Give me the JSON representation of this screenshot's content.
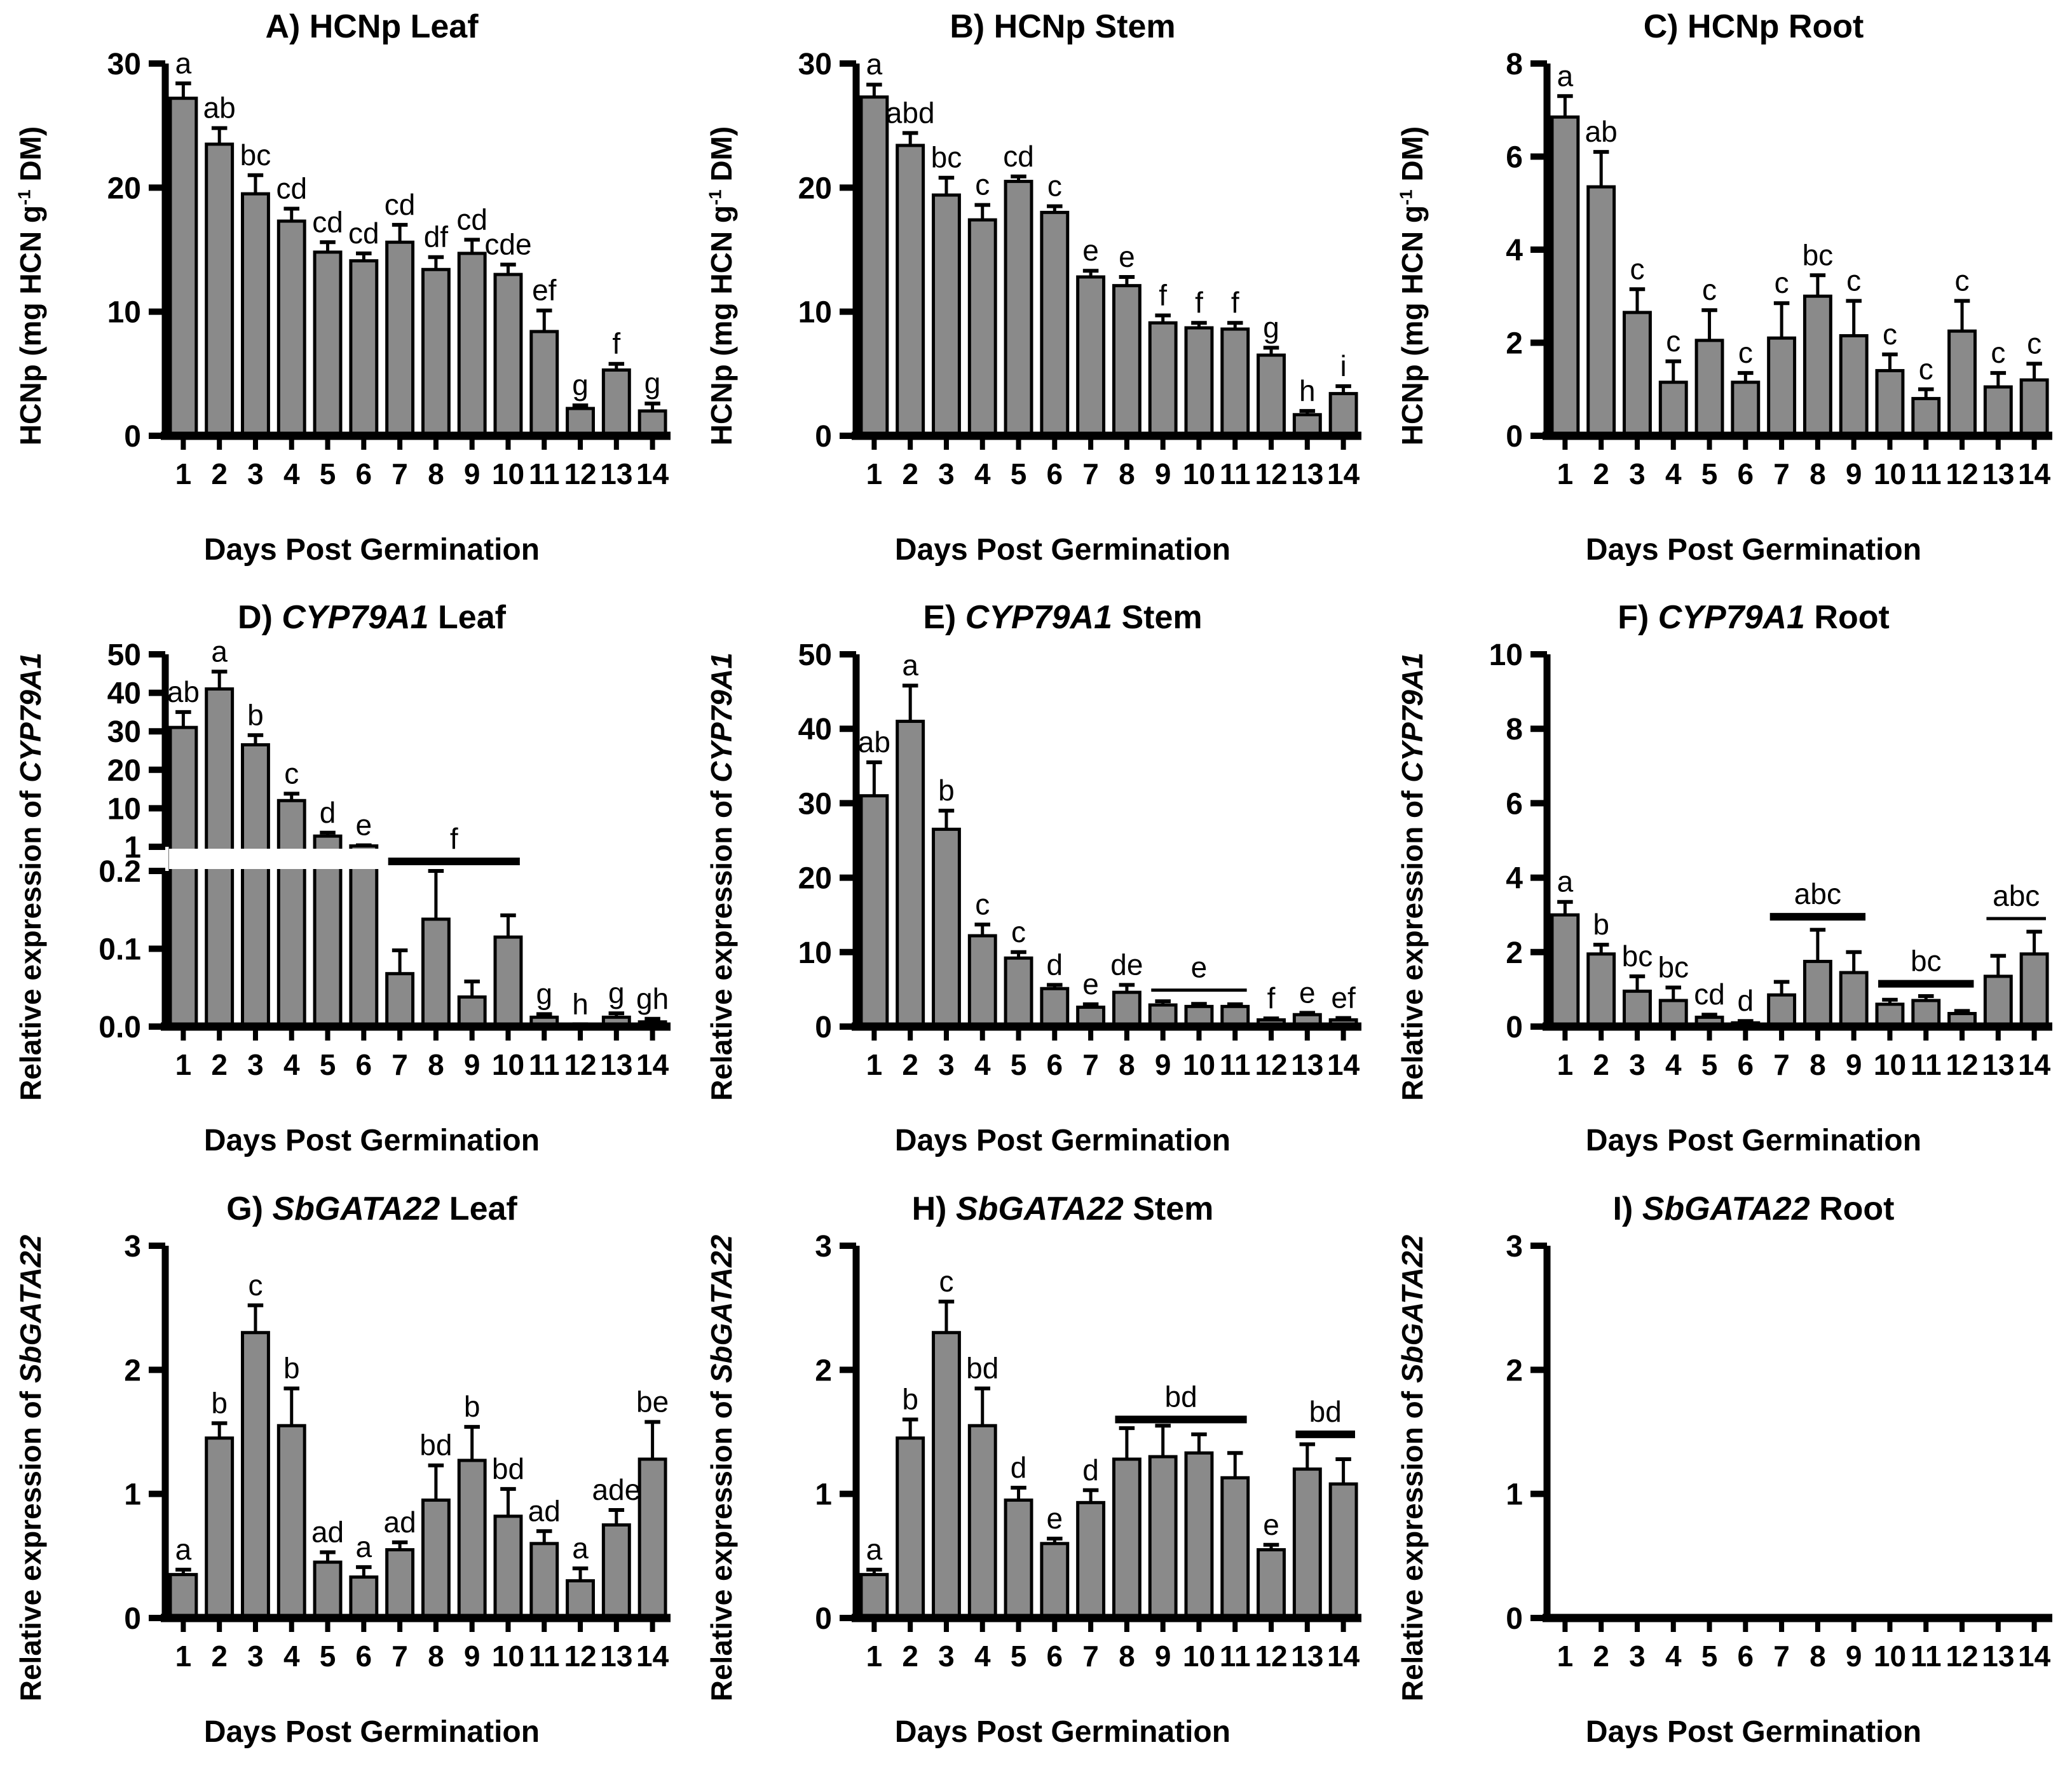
{
  "figure": {
    "xlabel": "Days Post Germination",
    "bar_color": "#8a8a8a",
    "bar_edge": "#000000",
    "text_color": "#000000",
    "background": "#ffffff"
  },
  "chart_data": [
    {
      "id": "A",
      "type": "bar",
      "title": [
        {
          "t": "A) HCNp Leaf"
        }
      ],
      "ylabel": [
        {
          "t": "HCNp  (mg HCN g"
        },
        {
          "t": "-1",
          "sup": true
        },
        {
          "t": " DM)"
        }
      ],
      "xlabel": "Days Post Germination",
      "categories": [
        1,
        2,
        3,
        4,
        5,
        6,
        7,
        8,
        9,
        10,
        11,
        12,
        13,
        14
      ],
      "ylim": [
        0,
        30
      ],
      "yticks": [
        0,
        10,
        20,
        30
      ],
      "values": [
        27.2,
        23.5,
        19.5,
        17.3,
        14.8,
        14.1,
        15.6,
        13.4,
        14.7,
        13.0,
        8.4,
        2.2,
        5.3,
        2.0
      ],
      "errors": [
        1.2,
        1.3,
        1.5,
        1.0,
        0.8,
        0.6,
        1.4,
        1.0,
        1.1,
        0.8,
        1.7,
        0.25,
        0.5,
        0.6
      ],
      "letters": [
        "a",
        "ab",
        "bc",
        "cd",
        "cd",
        "cd",
        "cd",
        "df",
        "cd",
        "cde",
        "ef",
        "g",
        "f",
        "g"
      ],
      "spans": []
    },
    {
      "id": "B",
      "type": "bar",
      "title": [
        {
          "t": "B) HCNp Stem"
        }
      ],
      "ylabel": [
        {
          "t": "HCNp  (mg  HCN g"
        },
        {
          "t": "-1",
          "sup": true
        },
        {
          "t": " DM)"
        }
      ],
      "xlabel": "Days Post Germination",
      "categories": [
        1,
        2,
        3,
        4,
        5,
        6,
        7,
        8,
        9,
        10,
        11,
        12,
        13,
        14
      ],
      "ylim": [
        0,
        30
      ],
      "yticks": [
        0,
        10,
        20,
        30
      ],
      "values": [
        27.3,
        23.4,
        19.4,
        17.4,
        20.5,
        18.0,
        12.8,
        12.1,
        9.1,
        8.7,
        8.6,
        6.5,
        1.7,
        3.4
      ],
      "errors": [
        1.0,
        1.0,
        1.4,
        1.2,
        0.4,
        0.5,
        0.5,
        0.7,
        0.6,
        0.4,
        0.5,
        0.6,
        0.3,
        0.6
      ],
      "letters": [
        "a",
        "abd",
        "bc",
        "c",
        "cd",
        "c",
        "e",
        "e",
        "f",
        "f",
        "f",
        "g",
        "h",
        "i"
      ],
      "spans": []
    },
    {
      "id": "C",
      "type": "bar",
      "title": [
        {
          "t": "C) HCNp Root"
        }
      ],
      "ylabel": [
        {
          "t": "HCNp  (mg HCN g"
        },
        {
          "t": "-1",
          "sup": true
        },
        {
          "t": " DM)"
        }
      ],
      "xlabel": "Days Post Germination",
      "categories": [
        1,
        2,
        3,
        4,
        5,
        6,
        7,
        8,
        9,
        10,
        11,
        12,
        13,
        14
      ],
      "ylim": [
        0,
        8
      ],
      "yticks": [
        0,
        2,
        4,
        6,
        8
      ],
      "values": [
        6.85,
        5.35,
        2.65,
        1.15,
        2.05,
        1.15,
        2.1,
        3.0,
        2.15,
        1.4,
        0.8,
        2.25,
        1.05,
        1.2
      ],
      "errors": [
        0.45,
        0.75,
        0.5,
        0.45,
        0.65,
        0.2,
        0.75,
        0.45,
        0.75,
        0.35,
        0.2,
        0.65,
        0.3,
        0.35
      ],
      "letters": [
        "a",
        "ab",
        "c",
        "c",
        "c",
        "c",
        "c",
        "bc",
        "c",
        "c",
        "c",
        "c",
        "c",
        "c"
      ],
      "spans": []
    },
    {
      "id": "D",
      "type": "bar-broken",
      "title": [
        {
          "t": "D) "
        },
        {
          "t": "CYP79A1",
          "i": true
        },
        {
          "t": " Leaf"
        }
      ],
      "ylabel": [
        {
          "t": "Relative expression of "
        },
        {
          "t": "CYP79A1",
          "i": true
        }
      ],
      "xlabel": "Days Post Germination",
      "categories": [
        1,
        2,
        3,
        4,
        5,
        6,
        7,
        8,
        9,
        10,
        11,
        12,
        13,
        14
      ],
      "broken": {
        "lower_lim": 0.2,
        "lower_ticks": [
          0,
          0.1,
          0.2
        ],
        "lower_tick_labels": [
          "0.0",
          "0.1",
          "0.2"
        ],
        "upper_ticks": [
          1,
          10,
          20,
          30,
          40,
          50
        ]
      },
      "values": [
        31,
        41,
        26.5,
        12,
        3.5,
        1.2,
        0.068,
        0.138,
        0.038,
        0.115,
        0.012,
        0.002,
        0.012,
        0.006
      ],
      "errors": [
        4,
        4.5,
        2.5,
        1.8,
        0.8,
        0.15,
        0.03,
        0.062,
        0.02,
        0.028,
        0.004,
        0.001,
        0.005,
        0.004
      ],
      "letters": [
        "ab",
        "a",
        "b",
        "c",
        "d",
        "e",
        "",
        "",
        "",
        "",
        "g",
        "h",
        "g",
        "gh"
      ],
      "spans": [
        {
          "label": "f",
          "from": 7,
          "to": 10,
          "gap": true,
          "thick": true
        }
      ]
    },
    {
      "id": "E",
      "type": "bar",
      "title": [
        {
          "t": "E) "
        },
        {
          "t": "CYP79A1",
          "i": true
        },
        {
          "t": " Stem"
        }
      ],
      "ylabel": [
        {
          "t": "Relative expression of "
        },
        {
          "t": "CYP79A1",
          "i": true
        }
      ],
      "xlabel": "Days Post Germination",
      "categories": [
        1,
        2,
        3,
        4,
        5,
        6,
        7,
        8,
        9,
        10,
        11,
        12,
        13,
        14
      ],
      "ylim": [
        0,
        50
      ],
      "yticks": [
        0,
        10,
        20,
        30,
        40,
        50
      ],
      "values": [
        31,
        41,
        26.5,
        12.2,
        9.2,
        5.1,
        2.6,
        4.6,
        2.9,
        2.7,
        2.7,
        0.9,
        1.6,
        0.9
      ],
      "errors": [
        4.5,
        4.8,
        2.5,
        1.5,
        0.8,
        0.5,
        0.4,
        1.0,
        0.5,
        0.35,
        0.3,
        0.2,
        0.25,
        0.25
      ],
      "letters": [
        "ab",
        "a",
        "b",
        "c",
        "c",
        "d",
        "e",
        "de",
        "",
        "",
        "",
        "f",
        "e",
        "ef"
      ],
      "spans": [
        {
          "label": "e",
          "from": 9,
          "to": 11,
          "y": 4.9,
          "thick": false
        }
      ]
    },
    {
      "id": "F",
      "type": "bar",
      "title": [
        {
          "t": "F) "
        },
        {
          "t": "CYP79A1",
          "i": true
        },
        {
          "t": " Root"
        }
      ],
      "ylabel": [
        {
          "t": "Relative expression of "
        },
        {
          "t": "CYP79A1",
          "i": true
        }
      ],
      "xlabel": "Days Post Germination",
      "categories": [
        1,
        2,
        3,
        4,
        5,
        6,
        7,
        8,
        9,
        10,
        11,
        12,
        13,
        14
      ],
      "ylim": [
        0,
        10
      ],
      "yticks": [
        0,
        2,
        4,
        6,
        8,
        10
      ],
      "values": [
        3.0,
        1.95,
        0.95,
        0.7,
        0.25,
        0.1,
        0.85,
        1.75,
        1.45,
        0.6,
        0.7,
        0.35,
        1.35,
        1.95
      ],
      "errors": [
        0.35,
        0.25,
        0.4,
        0.35,
        0.07,
        0.05,
        0.35,
        0.85,
        0.55,
        0.12,
        0.12,
        0.07,
        0.55,
        0.6
      ],
      "letters": [
        "a",
        "b",
        "bc",
        "bc",
        "cd",
        "d",
        "",
        "",
        "",
        "",
        "",
        "",
        "",
        ""
      ],
      "spans": [
        {
          "label": "abc",
          "from": 7,
          "to": 9,
          "y": 2.95,
          "thick": true
        },
        {
          "label": "bc",
          "from": 10,
          "to": 12,
          "y": 1.15,
          "thick": true
        },
        {
          "label": "abc",
          "from": 13,
          "to": 14,
          "y": 2.9,
          "thick": false
        }
      ]
    },
    {
      "id": "G",
      "type": "bar",
      "title": [
        {
          "t": "G) "
        },
        {
          "t": "SbGATA22",
          "i": true
        },
        {
          "t": " Leaf"
        }
      ],
      "ylabel": [
        {
          "t": "Relative expression of "
        },
        {
          "t": "SbGATA22",
          "i": true
        }
      ],
      "xlabel": "Days Post Germination",
      "categories": [
        1,
        2,
        3,
        4,
        5,
        6,
        7,
        8,
        9,
        10,
        11,
        12,
        13,
        14
      ],
      "ylim": [
        0,
        3
      ],
      "yticks": [
        0,
        1,
        2,
        3
      ],
      "values": [
        0.35,
        1.45,
        2.3,
        1.55,
        0.45,
        0.33,
        0.55,
        0.95,
        1.27,
        0.82,
        0.6,
        0.3,
        0.75,
        1.28
      ],
      "errors": [
        0.04,
        0.12,
        0.22,
        0.3,
        0.08,
        0.08,
        0.06,
        0.28,
        0.27,
        0.22,
        0.1,
        0.1,
        0.12,
        0.3
      ],
      "letters": [
        "a",
        "b",
        "c",
        "b",
        "ad",
        "a",
        "ad",
        "bd",
        "b",
        "bd",
        "ad",
        "a",
        "ade",
        "be"
      ],
      "spans": []
    },
    {
      "id": "H",
      "type": "bar",
      "title": [
        {
          "t": "H) "
        },
        {
          "t": "SbGATA22",
          "i": true
        },
        {
          "t": " Stem"
        }
      ],
      "ylabel": [
        {
          "t": "Relative expression of "
        },
        {
          "t": "SbGATA22",
          "i": true
        }
      ],
      "xlabel": "Days Post Germination",
      "categories": [
        1,
        2,
        3,
        4,
        5,
        6,
        7,
        8,
        9,
        10,
        11,
        12,
        13,
        14
      ],
      "ylim": [
        0,
        3
      ],
      "yticks": [
        0,
        1,
        2,
        3
      ],
      "values": [
        0.35,
        1.45,
        2.3,
        1.55,
        0.95,
        0.6,
        0.93,
        1.28,
        1.3,
        1.33,
        1.13,
        0.55,
        1.2,
        1.08
      ],
      "errors": [
        0.04,
        0.15,
        0.25,
        0.3,
        0.1,
        0.04,
        0.1,
        0.25,
        0.25,
        0.15,
        0.2,
        0.04,
        0.2,
        0.2
      ],
      "letters": [
        "a",
        "b",
        "c",
        "bd",
        "d",
        "e",
        "d",
        "",
        "",
        "",
        "",
        "e",
        "",
        ""
      ],
      "spans": [
        {
          "label": "bd",
          "from": 8,
          "to": 11,
          "y": 1.6,
          "thick": true
        },
        {
          "label": "bd",
          "from": 13,
          "to": 14,
          "y": 1.48,
          "thick": true
        }
      ]
    },
    {
      "id": "I",
      "type": "bar",
      "title": [
        {
          "t": "I) "
        },
        {
          "t": "SbGATA22",
          "i": true
        },
        {
          "t": " Root"
        }
      ],
      "ylabel": [
        {
          "t": "Relative expression of "
        },
        {
          "t": "SbGATA22",
          "i": true
        }
      ],
      "xlabel": "Days Post Germination",
      "categories": [
        1,
        2,
        3,
        4,
        5,
        6,
        7,
        8,
        9,
        10,
        11,
        12,
        13,
        14
      ],
      "ylim": [
        0,
        3
      ],
      "yticks": [
        0,
        1,
        2,
        3
      ],
      "values": [
        0,
        0,
        0,
        0,
        0,
        0,
        0,
        0,
        0,
        0,
        0,
        0,
        0,
        0.02
      ],
      "errors": [
        0,
        0,
        0,
        0,
        0,
        0,
        0,
        0,
        0,
        0,
        0,
        0,
        0,
        0
      ],
      "letters": [
        "",
        "",
        "",
        "",
        "",
        "",
        "",
        "",
        "",
        "",
        "",
        "",
        "",
        ""
      ],
      "spans": []
    }
  ]
}
